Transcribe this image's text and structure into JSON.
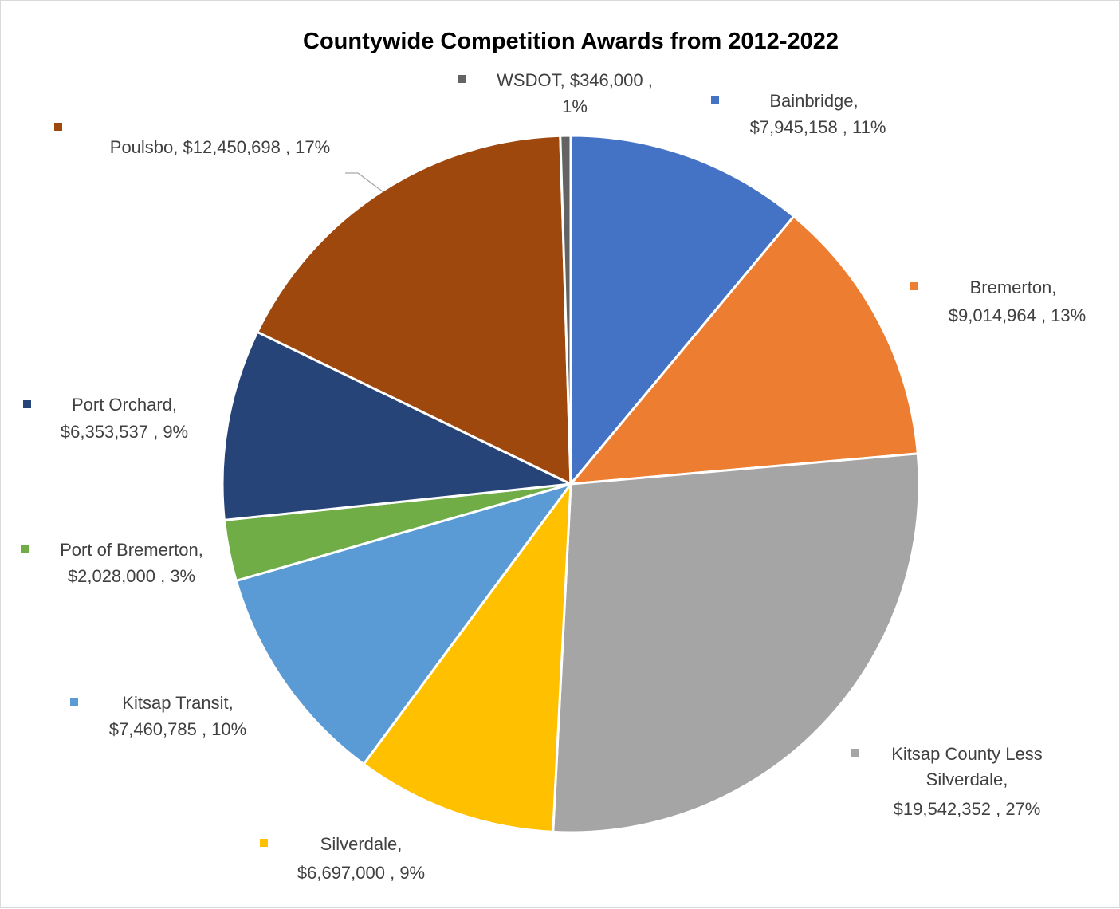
{
  "chart_data": {
    "type": "pie",
    "title": "Countywide Competition Awards from 2012-2022",
    "slices": [
      {
        "name": "Bainbridge",
        "value_text": "$7,945,158",
        "value": 7945158,
        "percent": "11%",
        "color": "#4472C4"
      },
      {
        "name": "Bremerton",
        "value_text": "$9,014,964",
        "value": 9014964,
        "percent": "13%",
        "color": "#ED7D31"
      },
      {
        "name": "Kitsap County Less Silverdale",
        "value_text": "$19,542,352",
        "value": 19542352,
        "percent": "27%",
        "color": "#A5A5A5"
      },
      {
        "name": "Silverdale",
        "value_text": "$6,697,000",
        "value": 6697000,
        "percent": "9%",
        "color": "#FFC000"
      },
      {
        "name": "Kitsap Transit",
        "value_text": "$7,460,785",
        "value": 7460785,
        "percent": "10%",
        "color": "#5B9BD5"
      },
      {
        "name": "Port of Bremerton",
        "value_text": "$2,028,000",
        "value": 2028000,
        "percent": "3%",
        "color": "#70AD47"
      },
      {
        "name": "Port Orchard",
        "value_text": "$6,353,537",
        "value": 6353537,
        "percent": "9%",
        "color": "#264478"
      },
      {
        "name": "Poulsbo",
        "value_text": "$12,450,698",
        "value": 12450698,
        "percent": "17%",
        "color": "#9E480E"
      },
      {
        "name": "WSDOT",
        "value_text": "$346,000",
        "value": 346000,
        "percent": "1%",
        "color": "#636363"
      }
    ],
    "legend": "none",
    "grid": false
  }
}
